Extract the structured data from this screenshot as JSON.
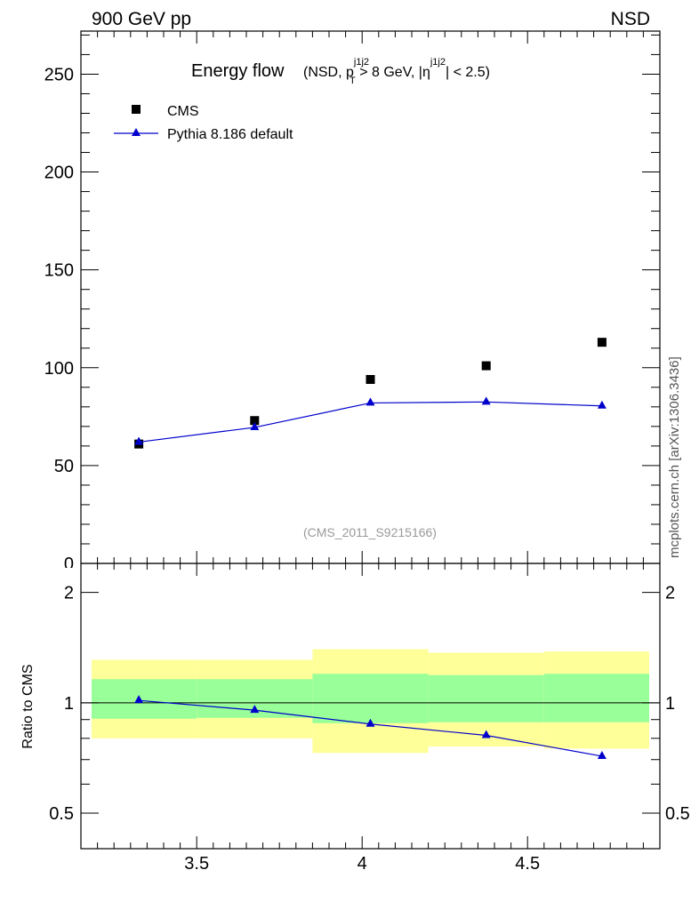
{
  "header": {
    "left": "900 GeV pp",
    "right": "NSD"
  },
  "side_label": "mcplots.cern.ch [arXiv:1306.3436]",
  "chart_data": [
    {
      "type": "scatter",
      "title": "Energy flow",
      "title_cut": {
        "open": "(NSD, p",
        "pt_sup": "j1j2",
        "pt_sub": "T",
        "mid": " > 8 GeV, |η",
        "eta_sup": "j1j2",
        "close": "| < 2.5)"
      },
      "watermark": "(CMS_2011_S9215166)",
      "xlim": [
        3.15,
        4.9
      ],
      "ylim": [
        0,
        272
      ],
      "yticks": [
        "50",
        "100",
        "150",
        "200",
        "250"
      ],
      "ytick_values": [
        50,
        100,
        150,
        200,
        250
      ],
      "legend_placement": "top-left",
      "series": [
        {
          "name": "CMS",
          "marker": "square",
          "color": "#000000",
          "x": [
            3.325,
            3.675,
            4.025,
            4.375,
            4.725
          ],
          "y": [
            61,
            73,
            94,
            101,
            113
          ]
        },
        {
          "name": "Pythia 8.186 default",
          "marker": "triangle",
          "color": "#0000cc",
          "x": [
            3.325,
            3.675,
            4.025,
            4.375,
            4.725
          ],
          "y": [
            62,
            69.5,
            82,
            82.5,
            80.5
          ]
        }
      ]
    },
    {
      "type": "line",
      "ylabel": "Ratio to CMS",
      "xlim": [
        3.15,
        4.9
      ],
      "ylim": [
        0.4,
        2.4
      ],
      "xticks": [
        "3.5",
        "4",
        "4.5"
      ],
      "xtick_values": [
        3.5,
        4.0,
        4.5
      ],
      "yticks": [
        "0.5",
        "1",
        "2"
      ],
      "ytick_values": [
        0.5,
        1,
        2
      ],
      "y_scale": "log",
      "bands": [
        {
          "x0": 3.15,
          "x1": 3.5,
          "yellow": [
            0.8,
            1.31
          ],
          "green": [
            0.905,
            1.16
          ]
        },
        {
          "x0": 3.5,
          "x1": 3.85,
          "yellow": [
            0.8,
            1.31
          ],
          "green": [
            0.91,
            1.16
          ]
        },
        {
          "x0": 3.85,
          "x1": 4.2,
          "yellow": [
            0.73,
            1.4
          ],
          "green": [
            0.88,
            1.2
          ]
        },
        {
          "x0": 4.2,
          "x1": 4.55,
          "yellow": [
            0.76,
            1.37
          ],
          "green": [
            0.885,
            1.19
          ]
        },
        {
          "x0": 4.55,
          "x1": 4.9,
          "yellow": [
            0.75,
            1.38
          ],
          "green": [
            0.885,
            1.2
          ]
        }
      ],
      "band_colors": {
        "yellow": "#ffff99",
        "green": "#99ff99"
      },
      "series": [
        {
          "name": "Pythia 8.186 default",
          "color": "#0000cc",
          "x": [
            3.325,
            3.675,
            4.025,
            4.375,
            4.725
          ],
          "y": [
            1.015,
            0.955,
            0.875,
            0.815,
            0.715
          ]
        }
      ]
    }
  ]
}
